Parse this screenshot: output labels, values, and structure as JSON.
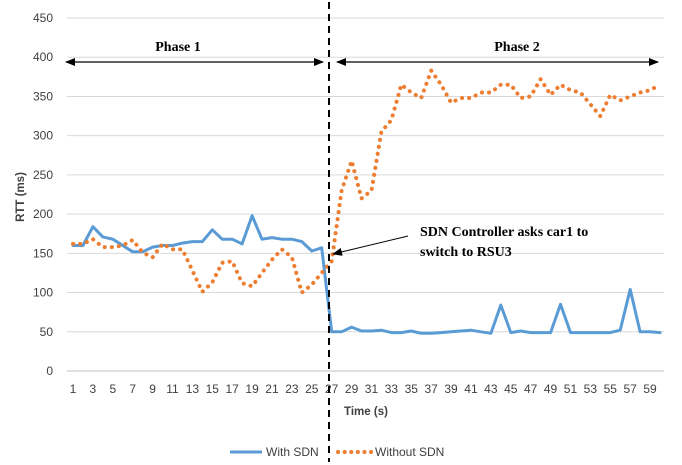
{
  "chart_data": {
    "type": "line",
    "xlabel": "Time (s)",
    "ylabel": "RTT (ms)",
    "ylim": [
      0,
      450
    ],
    "yticks": [
      0,
      50,
      100,
      150,
      200,
      250,
      300,
      350,
      400,
      450
    ],
    "xlim": [
      1,
      60
    ],
    "xticks": [
      1,
      3,
      5,
      7,
      9,
      11,
      13,
      15,
      17,
      19,
      21,
      23,
      25,
      27,
      29,
      31,
      33,
      35,
      37,
      39,
      41,
      43,
      45,
      47,
      49,
      51,
      53,
      55,
      57,
      59
    ],
    "grid": true,
    "legend": "bottom",
    "series": [
      {
        "name": "With SDN",
        "color": "#5B9BD5",
        "style": "solid",
        "x": [
          1,
          2,
          3,
          4,
          5,
          6,
          7,
          8,
          9,
          10,
          11,
          12,
          13,
          14,
          15,
          16,
          17,
          18,
          19,
          20,
          21,
          22,
          23,
          24,
          25,
          26,
          27,
          28,
          29,
          30,
          31,
          32,
          33,
          34,
          35,
          36,
          37,
          38,
          39,
          40,
          41,
          42,
          43,
          44,
          45,
          46,
          47,
          48,
          49,
          50,
          51,
          52,
          53,
          54,
          55,
          56,
          57,
          58,
          59,
          60
        ],
        "values": [
          160,
          160,
          184,
          171,
          168,
          160,
          152,
          152,
          158,
          160,
          160,
          163,
          165,
          165,
          180,
          168,
          168,
          162,
          198,
          168,
          170,
          168,
          168,
          165,
          153,
          157,
          50,
          50,
          56,
          51,
          51,
          52,
          49,
          49,
          51,
          48,
          48,
          49,
          50,
          51,
          52,
          50,
          48,
          84,
          49,
          51,
          49,
          49,
          49,
          85,
          49,
          49,
          49,
          49,
          49,
          52,
          104,
          50,
          50,
          49
        ],
        "x_note": "interpreted as second values 1..60"
      },
      {
        "name": "Without SDN",
        "color": "#ED7D31",
        "style": "dotted",
        "x": [
          1,
          2,
          3,
          4,
          5,
          6,
          7,
          8,
          9,
          10,
          11,
          12,
          13,
          14,
          15,
          16,
          17,
          18,
          19,
          20,
          21,
          22,
          23,
          24,
          25,
          26,
          27,
          28,
          29,
          30,
          31,
          32,
          33,
          34,
          35,
          36,
          37,
          38,
          39,
          40,
          41,
          42,
          43,
          44,
          45,
          46,
          47,
          48,
          49,
          50,
          51,
          52,
          53,
          54,
          55,
          56,
          57,
          58,
          59,
          60
        ],
        "values": [
          162,
          162,
          168,
          158,
          158,
          160,
          167,
          151,
          145,
          162,
          155,
          155,
          128,
          101,
          113,
          138,
          140,
          112,
          108,
          125,
          142,
          155,
          145,
          100,
          110,
          125,
          140,
          230,
          268,
          220,
          230,
          305,
          320,
          365,
          355,
          348,
          383,
          365,
          342,
          348,
          348,
          355,
          355,
          365,
          365,
          348,
          350,
          372,
          352,
          365,
          358,
          355,
          340,
          325,
          352,
          345,
          350,
          355,
          358,
          365
        ]
      }
    ],
    "annotations": {
      "phase1": "Phase 1",
      "phase2": "Phase 2",
      "callout_line1": "SDN Controller asks car1 to",
      "callout_line2": "switch to RSU3"
    }
  }
}
